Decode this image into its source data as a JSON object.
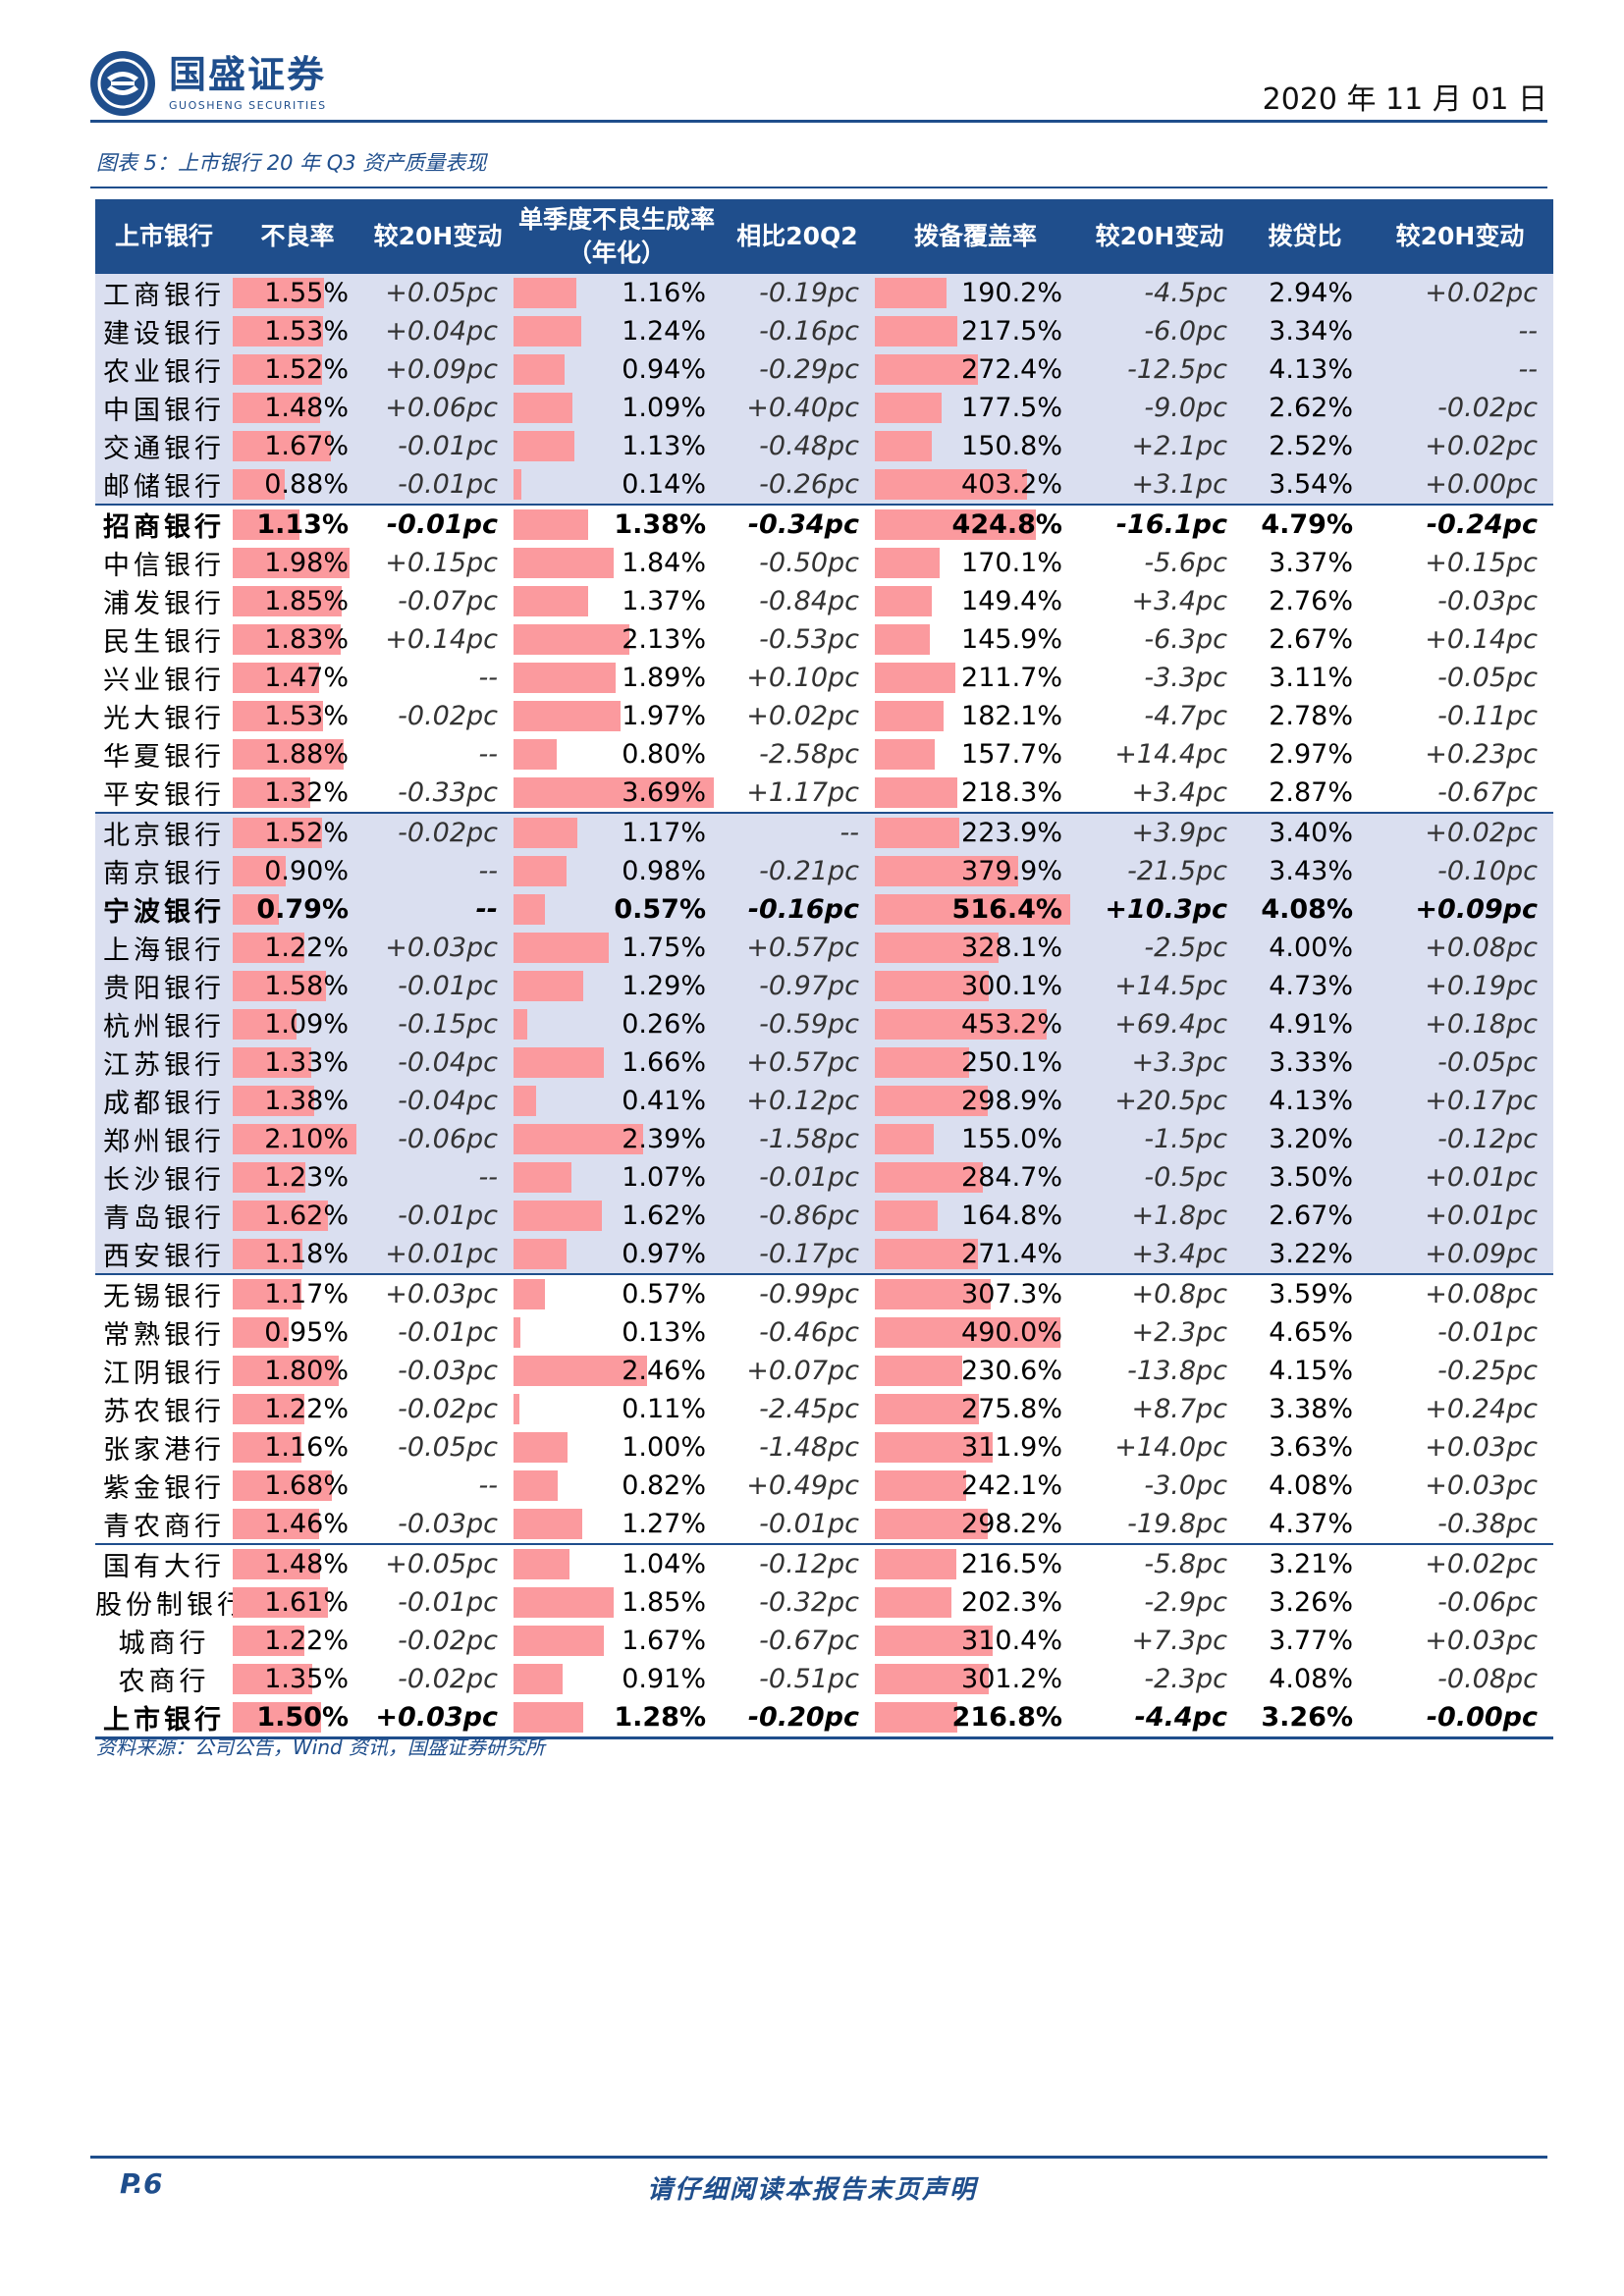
{
  "header": {
    "logo_cn": "国盛证券",
    "logo_en": "GUOSHENG SECURITIES",
    "date": "2020 年 11 月 01 日"
  },
  "caption": "图表 5：上市银行 20 年 Q3 资产质量表现",
  "table": {
    "headers": [
      "上市银行",
      "不良率",
      "较20H变动",
      "单季度不良生成率（年化）",
      "相比20Q2",
      "拨备覆盖率",
      "较20H变动",
      "拨贷比",
      "较20H变动"
    ],
    "scales": {
      "npl_max": 2.1,
      "gen_max": 3.69,
      "cov_max": 516.4
    },
    "rows": [
      {
        "name": "工商银行",
        "npl": "1.55%",
        "npl_v": 1.55,
        "npl_chg": "+0.05pc",
        "gen": "1.16%",
        "gen_v": 1.16,
        "gen_chg": "-0.19pc",
        "cov": "190.2%",
        "cov_v": 190.2,
        "cov_chg": "-4.5pc",
        "ltl": "2.94%",
        "ltl_chg": "+0.02pc",
        "group": "g1",
        "bold": false,
        "sep": false
      },
      {
        "name": "建设银行",
        "npl": "1.53%",
        "npl_v": 1.53,
        "npl_chg": "+0.04pc",
        "gen": "1.24%",
        "gen_v": 1.24,
        "gen_chg": "-0.16pc",
        "cov": "217.5%",
        "cov_v": 217.5,
        "cov_chg": "-6.0pc",
        "ltl": "3.34%",
        "ltl_chg": "--",
        "group": "g1",
        "bold": false,
        "sep": false
      },
      {
        "name": "农业银行",
        "npl": "1.52%",
        "npl_v": 1.52,
        "npl_chg": "+0.09pc",
        "gen": "0.94%",
        "gen_v": 0.94,
        "gen_chg": "-0.29pc",
        "cov": "272.4%",
        "cov_v": 272.4,
        "cov_chg": "-12.5pc",
        "ltl": "4.13%",
        "ltl_chg": "--",
        "group": "g1",
        "bold": false,
        "sep": false
      },
      {
        "name": "中国银行",
        "npl": "1.48%",
        "npl_v": 1.48,
        "npl_chg": "+0.06pc",
        "gen": "1.09%",
        "gen_v": 1.09,
        "gen_chg": "+0.40pc",
        "cov": "177.5%",
        "cov_v": 177.5,
        "cov_chg": "-9.0pc",
        "ltl": "2.62%",
        "ltl_chg": "-0.02pc",
        "group": "g1",
        "bold": false,
        "sep": false
      },
      {
        "name": "交通银行",
        "npl": "1.67%",
        "npl_v": 1.67,
        "npl_chg": "-0.01pc",
        "gen": "1.13%",
        "gen_v": 1.13,
        "gen_chg": "-0.48pc",
        "cov": "150.8%",
        "cov_v": 150.8,
        "cov_chg": "+2.1pc",
        "ltl": "2.52%",
        "ltl_chg": "+0.02pc",
        "group": "g1",
        "bold": false,
        "sep": false
      },
      {
        "name": "邮储银行",
        "npl": "0.88%",
        "npl_v": 0.88,
        "npl_chg": "-0.01pc",
        "gen": "0.14%",
        "gen_v": 0.14,
        "gen_chg": "-0.26pc",
        "cov": "403.2%",
        "cov_v": 403.2,
        "cov_chg": "+3.1pc",
        "ltl": "3.54%",
        "ltl_chg": "+0.00pc",
        "group": "g1",
        "bold": false,
        "sep": false
      },
      {
        "name": "招商银行",
        "npl": "1.13%",
        "npl_v": 1.13,
        "npl_chg": "-0.01pc",
        "gen": "1.38%",
        "gen_v": 1.38,
        "gen_chg": "-0.34pc",
        "cov": "424.8%",
        "cov_v": 424.8,
        "cov_chg": "-16.1pc",
        "ltl": "4.79%",
        "ltl_chg": "-0.24pc",
        "group": "g2",
        "bold": true,
        "sep": true
      },
      {
        "name": "中信银行",
        "npl": "1.98%",
        "npl_v": 1.98,
        "npl_chg": "+0.15pc",
        "gen": "1.84%",
        "gen_v": 1.84,
        "gen_chg": "-0.50pc",
        "cov": "170.1%",
        "cov_v": 170.1,
        "cov_chg": "-5.6pc",
        "ltl": "3.37%",
        "ltl_chg": "+0.15pc",
        "group": "g2",
        "bold": false,
        "sep": false
      },
      {
        "name": "浦发银行",
        "npl": "1.85%",
        "npl_v": 1.85,
        "npl_chg": "-0.07pc",
        "gen": "1.37%",
        "gen_v": 1.37,
        "gen_chg": "-0.84pc",
        "cov": "149.4%",
        "cov_v": 149.4,
        "cov_chg": "+3.4pc",
        "ltl": "2.76%",
        "ltl_chg": "-0.03pc",
        "group": "g2",
        "bold": false,
        "sep": false
      },
      {
        "name": "民生银行",
        "npl": "1.83%",
        "npl_v": 1.83,
        "npl_chg": "+0.14pc",
        "gen": "2.13%",
        "gen_v": 2.13,
        "gen_chg": "-0.53pc",
        "cov": "145.9%",
        "cov_v": 145.9,
        "cov_chg": "-6.3pc",
        "ltl": "2.67%",
        "ltl_chg": "+0.14pc",
        "group": "g2",
        "bold": false,
        "sep": false
      },
      {
        "name": "兴业银行",
        "npl": "1.47%",
        "npl_v": 1.47,
        "npl_chg": "--",
        "gen": "1.89%",
        "gen_v": 1.89,
        "gen_chg": "+0.10pc",
        "cov": "211.7%",
        "cov_v": 211.7,
        "cov_chg": "-3.3pc",
        "ltl": "3.11%",
        "ltl_chg": "-0.05pc",
        "group": "g2",
        "bold": false,
        "sep": false
      },
      {
        "name": "光大银行",
        "npl": "1.53%",
        "npl_v": 1.53,
        "npl_chg": "-0.02pc",
        "gen": "1.97%",
        "gen_v": 1.97,
        "gen_chg": "+0.02pc",
        "cov": "182.1%",
        "cov_v": 182.1,
        "cov_chg": "-4.7pc",
        "ltl": "2.78%",
        "ltl_chg": "-0.11pc",
        "group": "g2",
        "bold": false,
        "sep": false
      },
      {
        "name": "华夏银行",
        "npl": "1.88%",
        "npl_v": 1.88,
        "npl_chg": "--",
        "gen": "0.80%",
        "gen_v": 0.8,
        "gen_chg": "-2.58pc",
        "cov": "157.7%",
        "cov_v": 157.7,
        "cov_chg": "+14.4pc",
        "ltl": "2.97%",
        "ltl_chg": "+0.23pc",
        "group": "g2",
        "bold": false,
        "sep": false
      },
      {
        "name": "平安银行",
        "npl": "1.32%",
        "npl_v": 1.32,
        "npl_chg": "-0.33pc",
        "gen": "3.69%",
        "gen_v": 3.69,
        "gen_chg": "+1.17pc",
        "cov": "218.3%",
        "cov_v": 218.3,
        "cov_chg": "+3.4pc",
        "ltl": "2.87%",
        "ltl_chg": "-0.67pc",
        "group": "g2",
        "bold": false,
        "sep": false
      },
      {
        "name": "北京银行",
        "npl": "1.52%",
        "npl_v": 1.52,
        "npl_chg": "-0.02pc",
        "gen": "1.17%",
        "gen_v": 1.17,
        "gen_chg": "--",
        "cov": "223.9%",
        "cov_v": 223.9,
        "cov_chg": "+3.9pc",
        "ltl": "3.40%",
        "ltl_chg": "+0.02pc",
        "group": "g3",
        "bold": false,
        "sep": true
      },
      {
        "name": "南京银行",
        "npl": "0.90%",
        "npl_v": 0.9,
        "npl_chg": "--",
        "gen": "0.98%",
        "gen_v": 0.98,
        "gen_chg": "-0.21pc",
        "cov": "379.9%",
        "cov_v": 379.9,
        "cov_chg": "-21.5pc",
        "ltl": "3.43%",
        "ltl_chg": "-0.10pc",
        "group": "g3",
        "bold": false,
        "sep": false
      },
      {
        "name": "宁波银行",
        "npl": "0.79%",
        "npl_v": 0.79,
        "npl_chg": "--",
        "gen": "0.57%",
        "gen_v": 0.57,
        "gen_chg": "-0.16pc",
        "cov": "516.4%",
        "cov_v": 516.4,
        "cov_chg": "+10.3pc",
        "ltl": "4.08%",
        "ltl_chg": "+0.09pc",
        "group": "g3",
        "bold": true,
        "sep": false
      },
      {
        "name": "上海银行",
        "npl": "1.22%",
        "npl_v": 1.22,
        "npl_chg": "+0.03pc",
        "gen": "1.75%",
        "gen_v": 1.75,
        "gen_chg": "+0.57pc",
        "cov": "328.1%",
        "cov_v": 328.1,
        "cov_chg": "-2.5pc",
        "ltl": "4.00%",
        "ltl_chg": "+0.08pc",
        "group": "g3",
        "bold": false,
        "sep": false
      },
      {
        "name": "贵阳银行",
        "npl": "1.58%",
        "npl_v": 1.58,
        "npl_chg": "-0.01pc",
        "gen": "1.29%",
        "gen_v": 1.29,
        "gen_chg": "-0.97pc",
        "cov": "300.1%",
        "cov_v": 300.1,
        "cov_chg": "+14.5pc",
        "ltl": "4.73%",
        "ltl_chg": "+0.19pc",
        "group": "g3",
        "bold": false,
        "sep": false
      },
      {
        "name": "杭州银行",
        "npl": "1.09%",
        "npl_v": 1.09,
        "npl_chg": "-0.15pc",
        "gen": "0.26%",
        "gen_v": 0.26,
        "gen_chg": "-0.59pc",
        "cov": "453.2%",
        "cov_v": 453.2,
        "cov_chg": "+69.4pc",
        "ltl": "4.91%",
        "ltl_chg": "+0.18pc",
        "group": "g3",
        "bold": false,
        "sep": false
      },
      {
        "name": "江苏银行",
        "npl": "1.33%",
        "npl_v": 1.33,
        "npl_chg": "-0.04pc",
        "gen": "1.66%",
        "gen_v": 1.66,
        "gen_chg": "+0.57pc",
        "cov": "250.1%",
        "cov_v": 250.1,
        "cov_chg": "+3.3pc",
        "ltl": "3.33%",
        "ltl_chg": "-0.05pc",
        "group": "g3",
        "bold": false,
        "sep": false
      },
      {
        "name": "成都银行",
        "npl": "1.38%",
        "npl_v": 1.38,
        "npl_chg": "-0.04pc",
        "gen": "0.41%",
        "gen_v": 0.41,
        "gen_chg": "+0.12pc",
        "cov": "298.9%",
        "cov_v": 298.9,
        "cov_chg": "+20.5pc",
        "ltl": "4.13%",
        "ltl_chg": "+0.17pc",
        "group": "g3",
        "bold": false,
        "sep": false
      },
      {
        "name": "郑州银行",
        "npl": "2.10%",
        "npl_v": 2.1,
        "npl_chg": "-0.06pc",
        "gen": "2.39%",
        "gen_v": 2.39,
        "gen_chg": "-1.58pc",
        "cov": "155.0%",
        "cov_v": 155.0,
        "cov_chg": "-1.5pc",
        "ltl": "3.20%",
        "ltl_chg": "-0.12pc",
        "group": "g3",
        "bold": false,
        "sep": false
      },
      {
        "name": "长沙银行",
        "npl": "1.23%",
        "npl_v": 1.23,
        "npl_chg": "--",
        "gen": "1.07%",
        "gen_v": 1.07,
        "gen_chg": "-0.01pc",
        "cov": "284.7%",
        "cov_v": 284.7,
        "cov_chg": "-0.5pc",
        "ltl": "3.50%",
        "ltl_chg": "+0.01pc",
        "group": "g3",
        "bold": false,
        "sep": false
      },
      {
        "name": "青岛银行",
        "npl": "1.62%",
        "npl_v": 1.62,
        "npl_chg": "-0.01pc",
        "gen": "1.62%",
        "gen_v": 1.62,
        "gen_chg": "-0.86pc",
        "cov": "164.8%",
        "cov_v": 164.8,
        "cov_chg": "+1.8pc",
        "ltl": "2.67%",
        "ltl_chg": "+0.01pc",
        "group": "g3",
        "bold": false,
        "sep": false
      },
      {
        "name": "西安银行",
        "npl": "1.18%",
        "npl_v": 1.18,
        "npl_chg": "+0.01pc",
        "gen": "0.97%",
        "gen_v": 0.97,
        "gen_chg": "-0.17pc",
        "cov": "271.4%",
        "cov_v": 271.4,
        "cov_chg": "+3.4pc",
        "ltl": "3.22%",
        "ltl_chg": "+0.09pc",
        "group": "g3",
        "bold": false,
        "sep": false
      },
      {
        "name": "无锡银行",
        "npl": "1.17%",
        "npl_v": 1.17,
        "npl_chg": "+0.03pc",
        "gen": "0.57%",
        "gen_v": 0.57,
        "gen_chg": "-0.99pc",
        "cov": "307.3%",
        "cov_v": 307.3,
        "cov_chg": "+0.8pc",
        "ltl": "3.59%",
        "ltl_chg": "+0.08pc",
        "group": "g4",
        "bold": false,
        "sep": true
      },
      {
        "name": "常熟银行",
        "npl": "0.95%",
        "npl_v": 0.95,
        "npl_chg": "-0.01pc",
        "gen": "0.13%",
        "gen_v": 0.13,
        "gen_chg": "-0.46pc",
        "cov": "490.0%",
        "cov_v": 490.0,
        "cov_chg": "+2.3pc",
        "ltl": "4.65%",
        "ltl_chg": "-0.01pc",
        "group": "g4",
        "bold": false,
        "sep": false
      },
      {
        "name": "江阴银行",
        "npl": "1.80%",
        "npl_v": 1.8,
        "npl_chg": "-0.03pc",
        "gen": "2.46%",
        "gen_v": 2.46,
        "gen_chg": "+0.07pc",
        "cov": "230.6%",
        "cov_v": 230.6,
        "cov_chg": "-13.8pc",
        "ltl": "4.15%",
        "ltl_chg": "-0.25pc",
        "group": "g4",
        "bold": false,
        "sep": false
      },
      {
        "name": "苏农银行",
        "npl": "1.22%",
        "npl_v": 1.22,
        "npl_chg": "-0.02pc",
        "gen": "0.11%",
        "gen_v": 0.11,
        "gen_chg": "-2.45pc",
        "cov": "275.8%",
        "cov_v": 275.8,
        "cov_chg": "+8.7pc",
        "ltl": "3.38%",
        "ltl_chg": "+0.24pc",
        "group": "g4",
        "bold": false,
        "sep": false
      },
      {
        "name": "张家港行",
        "npl": "1.16%",
        "npl_v": 1.16,
        "npl_chg": "-0.05pc",
        "gen": "1.00%",
        "gen_v": 1.0,
        "gen_chg": "-1.48pc",
        "cov": "311.9%",
        "cov_v": 311.9,
        "cov_chg": "+14.0pc",
        "ltl": "3.63%",
        "ltl_chg": "+0.03pc",
        "group": "g4",
        "bold": false,
        "sep": false
      },
      {
        "name": "紫金银行",
        "npl": "1.68%",
        "npl_v": 1.68,
        "npl_chg": "--",
        "gen": "0.82%",
        "gen_v": 0.82,
        "gen_chg": "+0.49pc",
        "cov": "242.1%",
        "cov_v": 242.1,
        "cov_chg": "-3.0pc",
        "ltl": "4.08%",
        "ltl_chg": "+0.03pc",
        "group": "g4",
        "bold": false,
        "sep": false
      },
      {
        "name": "青农商行",
        "npl": "1.46%",
        "npl_v": 1.46,
        "npl_chg": "-0.03pc",
        "gen": "1.27%",
        "gen_v": 1.27,
        "gen_chg": "-0.01pc",
        "cov": "298.2%",
        "cov_v": 298.2,
        "cov_chg": "-19.8pc",
        "ltl": "4.37%",
        "ltl_chg": "-0.38pc",
        "group": "g4",
        "bold": false,
        "sep": false
      },
      {
        "name": "国有大行",
        "npl": "1.48%",
        "npl_v": 1.48,
        "npl_chg": "+0.05pc",
        "gen": "1.04%",
        "gen_v": 1.04,
        "gen_chg": "-0.12pc",
        "cov": "216.5%",
        "cov_v": 216.5,
        "cov_chg": "-5.8pc",
        "ltl": "3.21%",
        "ltl_chg": "+0.02pc",
        "group": "g5",
        "bold": false,
        "sep": true
      },
      {
        "name": "股份制银行",
        "npl": "1.61%",
        "npl_v": 1.61,
        "npl_chg": "-0.01pc",
        "gen": "1.85%",
        "gen_v": 1.85,
        "gen_chg": "-0.32pc",
        "cov": "202.3%",
        "cov_v": 202.3,
        "cov_chg": "-2.9pc",
        "ltl": "3.26%",
        "ltl_chg": "-0.06pc",
        "group": "g5",
        "bold": false,
        "sep": false
      },
      {
        "name": "城商行",
        "npl": "1.22%",
        "npl_v": 1.22,
        "npl_chg": "-0.02pc",
        "gen": "1.67%",
        "gen_v": 1.67,
        "gen_chg": "-0.67pc",
        "cov": "310.4%",
        "cov_v": 310.4,
        "cov_chg": "+7.3pc",
        "ltl": "3.77%",
        "ltl_chg": "+0.03pc",
        "group": "g5",
        "bold": false,
        "sep": false
      },
      {
        "name": "农商行",
        "npl": "1.35%",
        "npl_v": 1.35,
        "npl_chg": "-0.02pc",
        "gen": "0.91%",
        "gen_v": 0.91,
        "gen_chg": "-0.51pc",
        "cov": "301.2%",
        "cov_v": 301.2,
        "cov_chg": "-2.3pc",
        "ltl": "4.08%",
        "ltl_chg": "-0.08pc",
        "group": "g5",
        "bold": false,
        "sep": false
      },
      {
        "name": "上市银行",
        "npl": "1.50%",
        "npl_v": 1.5,
        "npl_chg": "+0.03pc",
        "gen": "1.28%",
        "gen_v": 1.28,
        "gen_chg": "-0.20pc",
        "cov": "216.8%",
        "cov_v": 216.8,
        "cov_chg": "-4.4pc",
        "ltl": "3.26%",
        "ltl_chg": "-0.00pc",
        "group": "g5",
        "bold": true,
        "sep": false
      }
    ]
  },
  "source": "资料来源：公司公告，Wind 资讯，国盛证券研究所",
  "footer": {
    "page": "P.6",
    "disclaimer": "请仔细阅读本报告末页声明"
  },
  "colors": {
    "brand_blue": "#1f4e8c",
    "bar_red": "#fb9a9e",
    "band_lavender": "#dadff0"
  }
}
